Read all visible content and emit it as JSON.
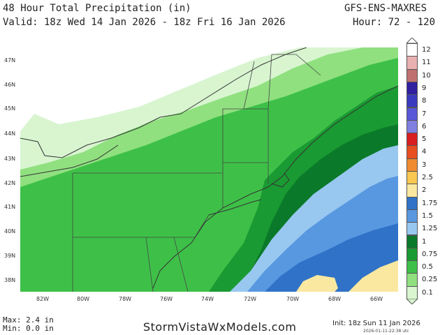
{
  "header": {
    "title": "48 Hour Total Precipitation (in)",
    "model": "GFS-ENS-MAXRES",
    "valid": "Valid: 18z Wed 14 Jan 2026 - 18z Fri 16 Jan 2026",
    "hour": "Hour: 72 - 120"
  },
  "lat_labels": [
    "47N",
    "46N",
    "45N",
    "44N",
    "43N",
    "42N",
    "41N",
    "40N",
    "39N",
    "38N"
  ],
  "lon_labels": [
    "82W",
    "80W",
    "78W",
    "76W",
    "74W",
    "72W",
    "70W",
    "68W",
    "66W"
  ],
  "legend": {
    "labels": [
      "12",
      "11",
      "10",
      "9",
      "8",
      "7",
      "6",
      "5",
      "4",
      "3",
      "2.5",
      "2",
      "1.75",
      "1.5",
      "1.25",
      "1",
      "0.75",
      "0.5",
      "0.25",
      "0.1"
    ],
    "colors": [
      "#ffffff",
      "#e8b0b0",
      "#c07070",
      "#3020a0",
      "#3a3ac0",
      "#5858d8",
      "#8080e0",
      "#d82020",
      "#e84e20",
      "#f08c30",
      "#f8c850",
      "#fae8a0",
      "#2f72c8",
      "#5898e0",
      "#98c8f0",
      "#0a7a2a",
      "#1a9a32",
      "#3ec048",
      "#90e080",
      "#d8f5d0"
    ]
  },
  "footer": {
    "max": "Max: 2.4 in",
    "min": "Min: 0.0 in",
    "brand": "StormVistaWxModels.com",
    "init": "Init: 18z Sun 11 Jan 2026",
    "stamp": "2026-01-11-22:38 utc"
  },
  "colors": {
    "land": "#ffffff",
    "p01": "#d8f5d0",
    "p025": "#90e080",
    "p05": "#3ec048",
    "p075": "#1a9a32",
    "p1": "#0a7a2a",
    "p125": "#98c8f0",
    "p15": "#5898e0",
    "p175": "#2f72c8",
    "p2": "#fae8a0"
  }
}
